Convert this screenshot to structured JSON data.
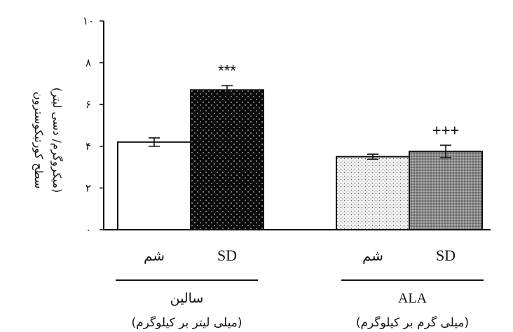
{
  "chart_data": {
    "type": "bar",
    "ylabel_line1": "سطح کورتیکوسترون",
    "ylabel_line2": "(میکروگرم/ دسی لیتر)",
    "ylim": [
      0,
      10
    ],
    "yticks": [
      0,
      2,
      4,
      6,
      8,
      10
    ],
    "ytick_labels": [
      "۰",
      "۲",
      "۴",
      "۶",
      "۸",
      "۱۰"
    ],
    "groups": [
      {
        "label": "سالین",
        "sublabel": "(میلی لیتر بر کیلوگرم)",
        "bars": [
          {
            "category": "شم",
            "value": 4.2,
            "error": 0.2,
            "pattern": "white",
            "annotation": ""
          },
          {
            "category": "SD",
            "value": 6.7,
            "error": 0.2,
            "pattern": "black-dots",
            "annotation": "***"
          }
        ]
      },
      {
        "label": "ALA",
        "sublabel": "(میلی گرم بر کیلوگرم)",
        "bars": [
          {
            "category": "شم",
            "value": 3.5,
            "error": 0.12,
            "pattern": "light-dots",
            "annotation": ""
          },
          {
            "category": "SD",
            "value": 3.75,
            "error": 0.3,
            "pattern": "gray-dots",
            "annotation": "+++"
          }
        ]
      }
    ],
    "grid": false,
    "legend": "none"
  }
}
